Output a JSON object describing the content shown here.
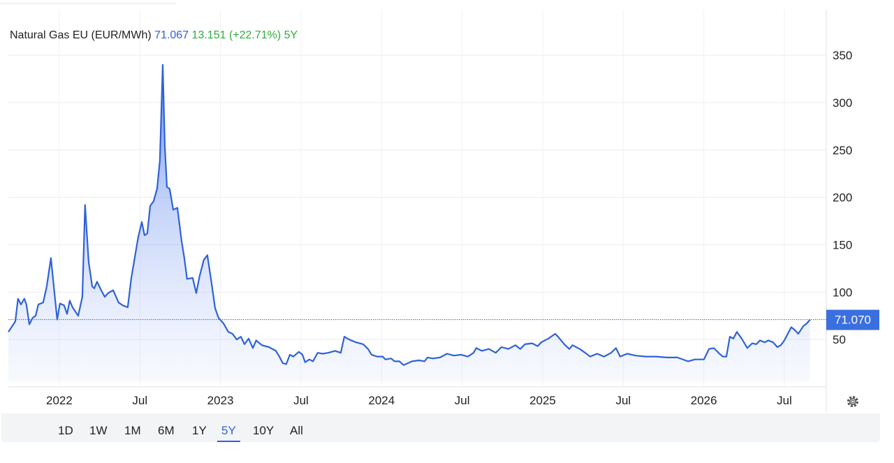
{
  "chart_data": {
    "type": "line",
    "title": "Natural Gas EU (EUR/MWh)",
    "price": "71.067",
    "change": "13.151",
    "change_pct": "(+22.71%)",
    "period": "5Y",
    "x": [
      2021.684,
      2021.727,
      2021.744,
      2021.762,
      2021.783,
      2021.796,
      2021.814,
      2021.835,
      2021.853,
      2021.87,
      2021.9,
      2021.922,
      2021.948,
      2021.97,
      2021.987,
      2022.004,
      2022.03,
      2022.048,
      2022.065,
      2022.082,
      2022.117,
      2022.143,
      2022.16,
      2022.182,
      2022.204,
      2022.217,
      2022.234,
      2022.26,
      2022.282,
      2022.303,
      2022.334,
      2022.368,
      2022.394,
      2022.425,
      2022.447,
      2022.464,
      2022.49,
      2022.512,
      2022.529,
      2022.546,
      2022.564,
      2022.585,
      2022.607,
      2022.624,
      2022.642,
      2022.655,
      2022.668,
      2022.685,
      2022.707,
      2022.733,
      2022.759,
      2022.776,
      2022.793,
      2022.828,
      2022.85,
      2022.871,
      2022.897,
      2022.919,
      2022.941,
      2022.967,
      2022.988,
      2023.019,
      2023.049,
      2023.075,
      2023.101,
      2023.127,
      2023.149,
      2023.175,
      2023.201,
      2023.222,
      2023.257,
      2023.301,
      2023.344,
      2023.366,
      2023.387,
      2023.409,
      2023.431,
      2023.452,
      2023.487,
      2023.509,
      2023.526,
      2023.552,
      2023.574,
      2023.604,
      2023.634,
      2023.669,
      2023.712,
      2023.747,
      2023.769,
      2023.799,
      2023.842,
      2023.886,
      2023.916,
      2023.938,
      2023.972,
      2024.007,
      2024.024,
      2024.059,
      2024.081,
      2024.111,
      2024.137,
      2024.189,
      2024.233,
      2024.267,
      2024.285,
      2024.319,
      2024.363,
      2024.406,
      2024.449,
      2024.493,
      2024.536,
      2024.571,
      2024.588,
      2024.623,
      2024.666,
      2024.709,
      2024.744,
      2024.787,
      2024.831,
      2024.861,
      2024.891,
      2024.935,
      2024.969,
      2024.991,
      2025.035,
      2025.078,
      2025.1,
      2025.134,
      2025.165,
      2025.186,
      2025.23,
      2025.264,
      2025.295,
      2025.338,
      2025.381,
      2025.425,
      2025.455,
      2025.481,
      2025.524,
      2025.576,
      2025.641,
      2025.706,
      2025.771,
      2025.836,
      2025.902,
      2025.945,
      2026.001,
      2026.032,
      2026.062,
      2026.097,
      2026.118,
      2026.14,
      2026.162,
      2026.183,
      2026.205,
      2026.235,
      2026.27,
      2026.3,
      2026.326,
      2026.348,
      2026.378,
      2026.4,
      2026.43,
      2026.456,
      2026.478,
      2026.5,
      2026.521,
      2026.543,
      2026.565,
      2026.586,
      2026.617,
      2026.639,
      2026.66
    ],
    "series": [
      {
        "color": "#2f62d8",
        "values": [
          58,
          69,
          93,
          87,
          93,
          87,
          66,
          73,
          75,
          87,
          89,
          106,
          136,
          99,
          71,
          88,
          86,
          77,
          91,
          84,
          75,
          95,
          192,
          132,
          106,
          104,
          111,
          102,
          95,
          99,
          102,
          89,
          86,
          84,
          115,
          132,
          158,
          174,
          160,
          162,
          191,
          196,
          209,
          239,
          340,
          254,
          211,
          209,
          187,
          189,
          154,
          136,
          114,
          115,
          99,
          117,
          134,
          139,
          114,
          83,
          73,
          67,
          58,
          56,
          50,
          53,
          45,
          51,
          41,
          49,
          44,
          42,
          38,
          32,
          25,
          24,
          34,
          32,
          37,
          34,
          26,
          29,
          27,
          36,
          35,
          36,
          38,
          36,
          53,
          50,
          47,
          45,
          40,
          34,
          32,
          32,
          29,
          30,
          27,
          27,
          23,
          27,
          28,
          27,
          31,
          30,
          31,
          35,
          33,
          34,
          32,
          36,
          41,
          38,
          40,
          36,
          42,
          40,
          44,
          40,
          45,
          46,
          43,
          47,
          51,
          56,
          52,
          45,
          40,
          44,
          40,
          36,
          32,
          35,
          32,
          36,
          41,
          32,
          35,
          33,
          32,
          32,
          31,
          31,
          27,
          29,
          29,
          40,
          41,
          35,
          32,
          32,
          53,
          51,
          58,
          51,
          41,
          46,
          45,
          49,
          47,
          49,
          47,
          42,
          44,
          49,
          56,
          63,
          60,
          56,
          64,
          67,
          71.07
        ]
      }
    ],
    "current": {
      "value": 71.07,
      "label": "71.070"
    },
    "xlim": [
      2021.684,
      2026.76
    ],
    "xticks": [
      {
        "value": 2022,
        "label": "2022"
      },
      {
        "value": 2022.5,
        "label": "Jul"
      },
      {
        "value": 2023,
        "label": "2023"
      },
      {
        "value": 2023.5,
        "label": "Jul"
      },
      {
        "value": 2024,
        "label": "2024"
      },
      {
        "value": 2024.5,
        "label": "Jul"
      },
      {
        "value": 2025,
        "label": "2025"
      },
      {
        "value": 2025.5,
        "label": "Jul"
      },
      {
        "value": 2026,
        "label": "2026"
      },
      {
        "value": 2026.5,
        "label": "Jul"
      }
    ],
    "ylim": [
      0,
      398
    ],
    "yticks": [
      50,
      100,
      150,
      200,
      250,
      300,
      350
    ],
    "grid": true
  },
  "ranges": [
    "1D",
    "1W",
    "1M",
    "6M",
    "1Y",
    "5Y",
    "10Y",
    "All"
  ],
  "active_range": "5Y"
}
